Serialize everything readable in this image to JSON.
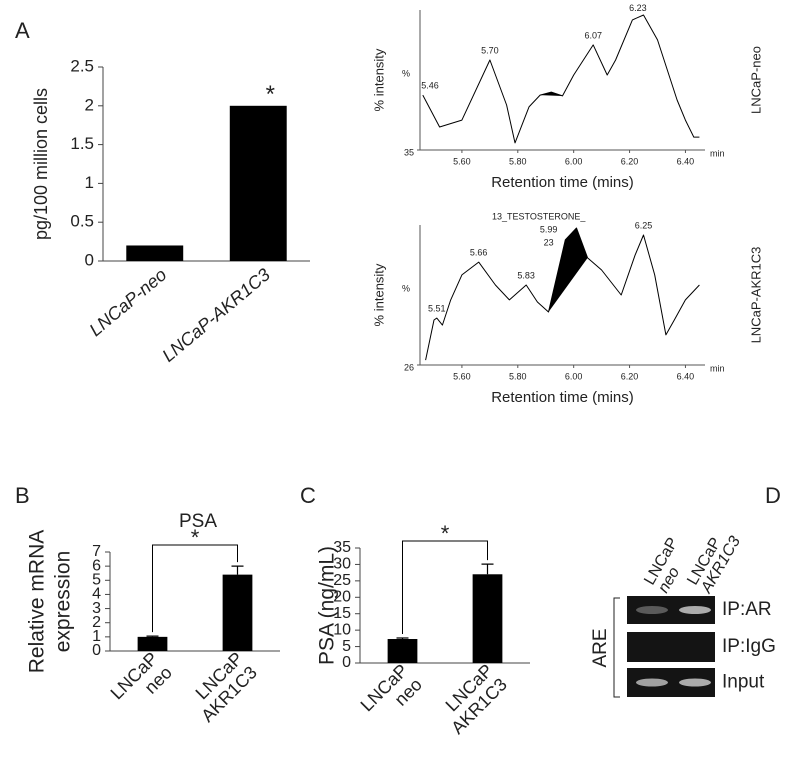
{
  "panel_labels": [
    "A",
    "B",
    "C",
    "D"
  ],
  "chart_data": [
    {
      "type": "bar",
      "ylabel": "pg/100 million cells",
      "categories": [
        "LNCaP-neo",
        "LNCaP-AKR1C3"
      ],
      "values": [
        0.2,
        2
      ],
      "color": "#000000",
      "ylim": [
        0,
        2.5
      ],
      "yticks": [
        0,
        0.5,
        1,
        1.5,
        2,
        2.5
      ],
      "annotation": "*"
    },
    {
      "type": "line",
      "ylabel": "% intensity",
      "xlabel": "Retention time (mins)",
      "x_unit": "min",
      "y_unit": "%",
      "side_label": "LNCaP-neo",
      "xlim": [
        5.45,
        6.47
      ],
      "xticks": [
        {
          "value": 5.6,
          "label": "5.60"
        },
        {
          "value": 5.8,
          "label": "5.80"
        },
        {
          "value": 6.0,
          "label": "6.00"
        },
        {
          "value": 6.2,
          "label": "6.20"
        },
        {
          "value": 6.4,
          "label": "6.40"
        }
      ],
      "ylim": [
        35,
        100
      ],
      "yticks": [
        35
      ],
      "color": "#000000",
      "x": [
        5.46,
        5.52,
        5.6,
        5.7,
        5.76,
        5.79,
        5.84,
        5.88,
        5.92,
        5.96,
        6.0,
        6.07,
        6.12,
        6.15,
        6.21,
        6.25,
        6.3,
        6.37,
        6.4,
        6.43,
        6.45
      ],
      "values": [
        60.5,
        45.7,
        48.9,
        76.8,
        55.9,
        38.3,
        55,
        60.5,
        61.9,
        60.1,
        69.8,
        83.8,
        69.8,
        76.8,
        95.4,
        97.7,
        86.1,
        58.2,
        48.9,
        41,
        41
      ],
      "peaks": [
        5.46,
        {
          "value": 5.7,
          "label": "5.70"
        },
        6.07,
        6.23
      ],
      "shade": [
        5.88,
        5.96
      ]
    },
    {
      "type": "line",
      "ylabel": "% intensity",
      "xlabel": "Retention time (mins)",
      "x_unit": "min",
      "y_unit": "%",
      "side_label": "LNCaP-AKR1C3",
      "xlim": [
        5.45,
        6.47
      ],
      "xticks": [
        {
          "value": 5.6,
          "label": "5.60"
        },
        {
          "value": 5.8,
          "label": "5.80"
        },
        {
          "value": 6.0,
          "label": "6.00"
        },
        {
          "value": 6.2,
          "label": "6.20"
        },
        {
          "value": 6.4,
          "label": "6.40"
        }
      ],
      "ylim": [
        26,
        100
      ],
      "yticks": [
        26
      ],
      "color": "#000000",
      "x": [
        5.47,
        5.5,
        5.51,
        5.53,
        5.56,
        5.6,
        5.66,
        5.72,
        5.77,
        5.83,
        5.87,
        5.91,
        5.97,
        6.01,
        6.05,
        6.1,
        6.17,
        6.22,
        6.25,
        6.29,
        6.33,
        6.36,
        6.4,
        6.45
      ],
      "values": [
        28.6,
        49.8,
        50.8,
        47.1,
        60.4,
        73.6,
        80.4,
        68.3,
        60.4,
        68.3,
        59.3,
        54,
        92.1,
        98.4,
        82.6,
        76.2,
        63,
        84.1,
        94.7,
        73.6,
        41.9,
        49.8,
        60.4,
        68.3
      ],
      "peaks": [
        5.51,
        5.66,
        5.83,
        6.25
      ],
      "shade": [
        5.91,
        6.05
      ],
      "annotations": [
        "13_TESTOSTERONE_",
        "5.99",
        "23"
      ]
    },
    {
      "type": "bar",
      "title": "PSA",
      "ylabel": [
        "Relative mRNA",
        "expression"
      ],
      "categories": [
        "LNCaP neo",
        "LNCaP AKR1C3"
      ],
      "values": [
        1,
        5.4
      ],
      "errors": [
        0.05,
        0.6
      ],
      "color": "#000000",
      "ylim": [
        0,
        7
      ],
      "yticks": [
        0,
        1,
        2,
        3,
        4,
        5,
        6,
        7
      ],
      "annotation": "*"
    },
    {
      "type": "bar",
      "ylabel": [
        "PSA (ng/mL)"
      ],
      "categories": [
        "LNCaP neo",
        "LNCaP AKR1C3"
      ],
      "values": [
        7.3,
        27
      ],
      "errors": [
        0.3,
        3.1
      ],
      "color": "#000000",
      "ylim": [
        0,
        35
      ],
      "yticks": [
        0,
        5,
        10,
        15,
        20,
        25,
        30,
        35
      ],
      "annotation": "*"
    },
    {
      "type": "gel",
      "lanes": [
        "LNCaP neo",
        "LNCaP AKR1C3"
      ],
      "rows": [
        "IP:AR",
        "IP:IgG",
        "Input"
      ],
      "group_label": "ARE"
    }
  ]
}
